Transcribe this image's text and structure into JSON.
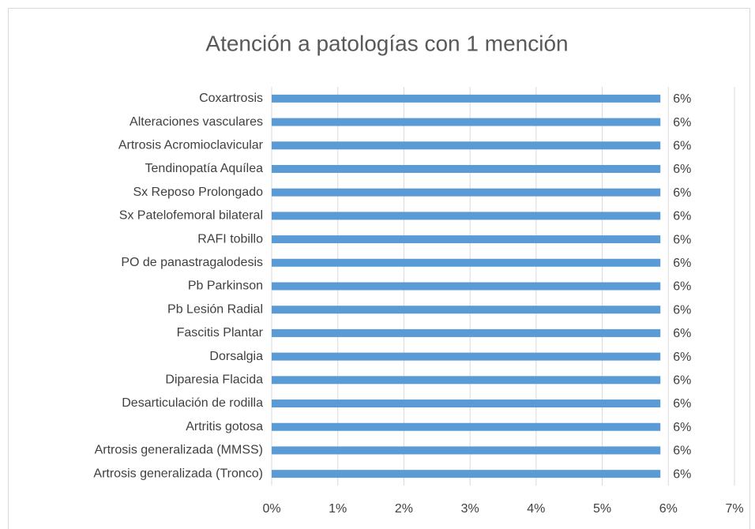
{
  "chart_data": {
    "type": "hbar",
    "title": "Atención a patologías con 1 mención",
    "categories": [
      "Coxartrosis",
      "Alteraciones vasculares",
      "Artrosis Acromioclavicular",
      "Tendinopatía Aquílea",
      "Sx Reposo Prolongado",
      "Sx Patelofemoral bilateral",
      "RAFI tobillo",
      "PO de panastragalodesis",
      "Pb Parkinson",
      "Pb Lesión Radial",
      "Fascitis Plantar",
      "Dorsalgia",
      "Diparesia Flacida",
      "Desarticulación de rodilla",
      "Artritis gotosa",
      "Artrosis generalizada (MMSS)",
      "Artrosis generalizada (Tronco)"
    ],
    "values": [
      5.88,
      5.88,
      5.88,
      5.88,
      5.88,
      5.88,
      5.88,
      5.88,
      5.88,
      5.88,
      5.88,
      5.88,
      5.88,
      5.88,
      5.88,
      5.88,
      5.88
    ],
    "value_labels": [
      "6%",
      "6%",
      "6%",
      "6%",
      "6%",
      "6%",
      "6%",
      "6%",
      "6%",
      "6%",
      "6%",
      "6%",
      "6%",
      "6%",
      "6%",
      "6%",
      "6%"
    ],
    "color": "#5b9bd5",
    "xlim": [
      0,
      7
    ],
    "xticks": [
      {
        "value": 0,
        "label": "0%"
      },
      {
        "value": 1,
        "label": "1%"
      },
      {
        "value": 2,
        "label": "2%"
      },
      {
        "value": 3,
        "label": "3%"
      },
      {
        "value": 4,
        "label": "4%"
      },
      {
        "value": 5,
        "label": "5%"
      },
      {
        "value": 6,
        "label": "6%"
      },
      {
        "value": 7,
        "label": "7%"
      }
    ],
    "grid": true
  }
}
